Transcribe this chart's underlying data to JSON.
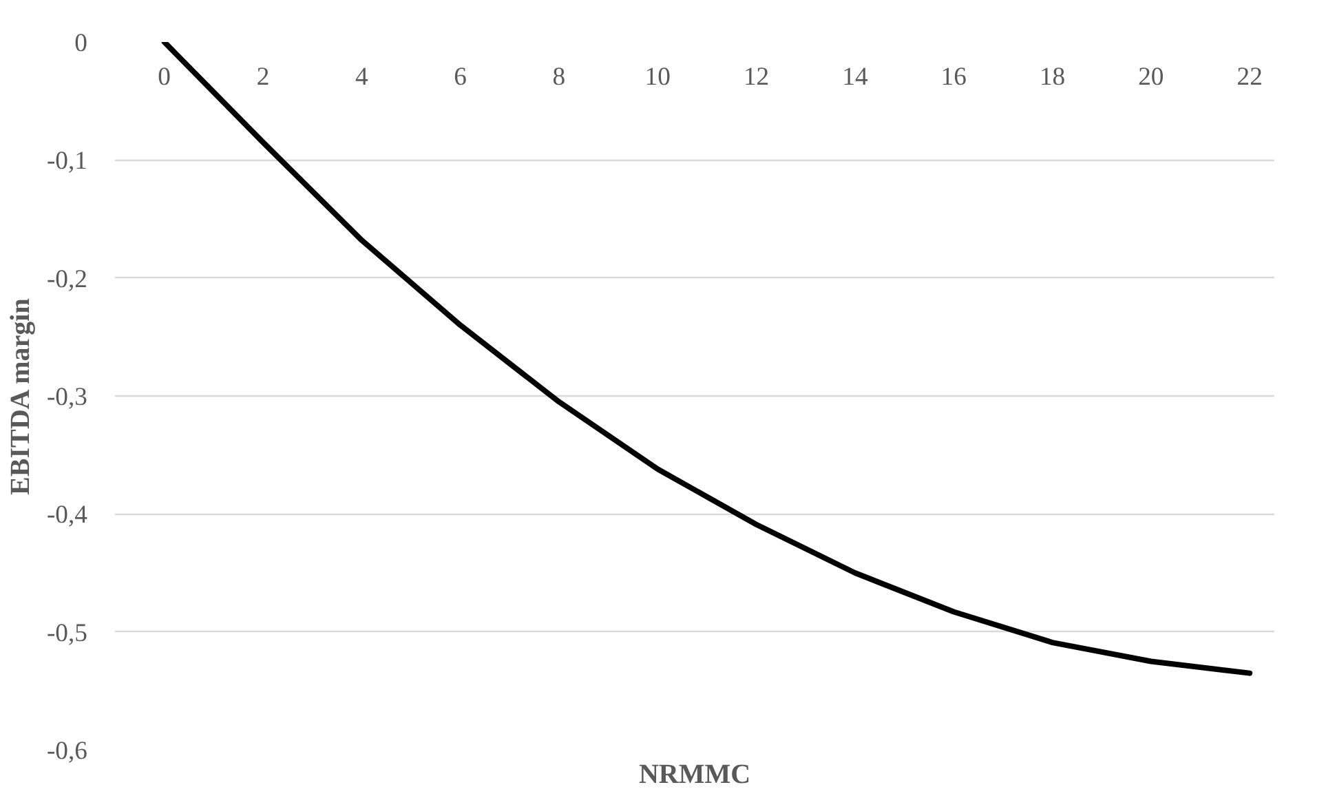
{
  "chart_data": {
    "type": "line",
    "xlabel": "NRMMC",
    "ylabel": "EBITDA margin",
    "x": [
      0,
      2,
      4,
      6,
      8,
      10,
      12,
      14,
      16,
      18,
      20,
      22
    ],
    "series": [
      {
        "color": "#000000",
        "values": [
          0,
          -0.085,
          -0.168,
          -0.24,
          -0.305,
          -0.362,
          -0.409,
          -0.45,
          -0.483,
          -0.509,
          -0.525,
          -0.535
        ]
      }
    ],
    "xlim": [
      -1,
      22.5
    ],
    "ylim": [
      -0.6,
      0
    ],
    "xticks": [
      0,
      2,
      4,
      6,
      8,
      10,
      12,
      14,
      16,
      18,
      20,
      22
    ],
    "yticks": [
      0,
      {
        "value": -0.1,
        "label": "-0,1"
      },
      {
        "value": -0.2,
        "label": "-0,2"
      },
      {
        "value": -0.3,
        "label": "-0,3"
      },
      {
        "value": -0.4,
        "label": "-0,4"
      },
      {
        "value": -0.5,
        "label": "-0,5"
      },
      {
        "value": -0.6,
        "label": "-0,6"
      }
    ],
    "grid": "y",
    "marker": "none",
    "line_style": "solid"
  }
}
